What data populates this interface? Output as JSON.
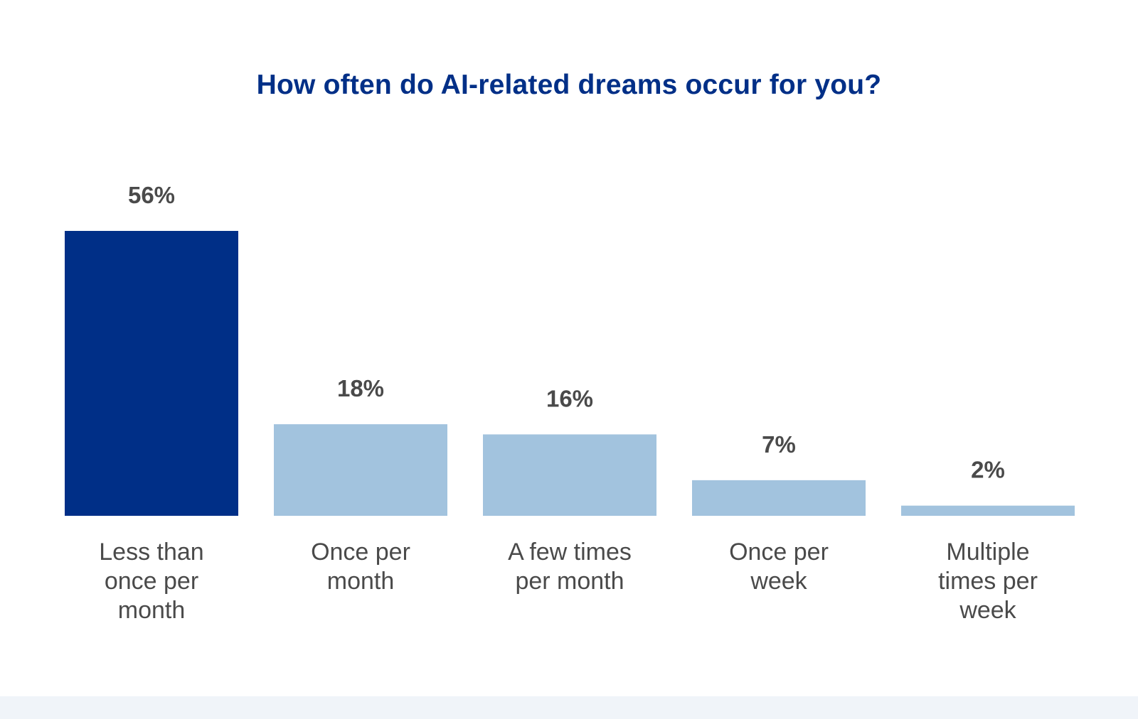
{
  "chart_data": {
    "type": "bar",
    "title": "How often do AI-related dreams occur for you?",
    "categories": [
      [
        "Less than",
        "once per",
        "month"
      ],
      [
        "Once per",
        "month"
      ],
      [
        "A few times",
        "per month"
      ],
      [
        "Once per",
        "week"
      ],
      [
        "Multiple",
        "times per",
        "week"
      ]
    ],
    "values": [
      56,
      18,
      16,
      7,
      2
    ],
    "value_labels": [
      "56%",
      "18%",
      "16%",
      "7%",
      "2%"
    ],
    "unit": "%",
    "highlight_index": 0,
    "ylim": [
      0,
      56
    ],
    "xlabel": "",
    "ylabel": "",
    "grid": false,
    "colors": {
      "highlight": "#002f87",
      "default": "#a2c3de",
      "value_label": "#4a4a4a",
      "category_label": "#4a4a4a",
      "title": "#002f87"
    }
  }
}
